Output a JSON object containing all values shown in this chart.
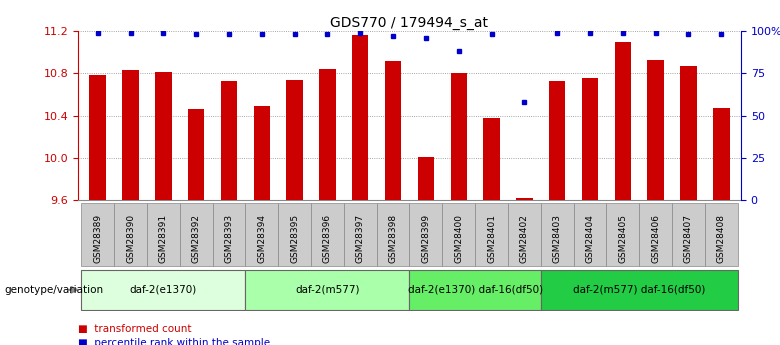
{
  "title": "GDS770 / 179494_s_at",
  "samples": [
    "GSM28389",
    "GSM28390",
    "GSM28391",
    "GSM28392",
    "GSM28393",
    "GSM28394",
    "GSM28395",
    "GSM28396",
    "GSM28397",
    "GSM28398",
    "GSM28399",
    "GSM28400",
    "GSM28401",
    "GSM28402",
    "GSM28403",
    "GSM28404",
    "GSM28405",
    "GSM28406",
    "GSM28407",
    "GSM28408"
  ],
  "bar_values": [
    10.78,
    10.83,
    10.81,
    10.46,
    10.73,
    10.49,
    10.74,
    10.84,
    11.16,
    10.92,
    10.01,
    10.8,
    10.38,
    9.62,
    10.73,
    10.76,
    11.1,
    10.93,
    10.87,
    10.47
  ],
  "percentile_values": [
    99,
    99,
    99,
    98,
    98,
    98,
    98,
    98,
    99,
    97,
    96,
    88,
    98,
    58,
    99,
    99,
    99,
    99,
    98,
    98
  ],
  "ymin": 9.6,
  "ymax": 11.2,
  "yticks_left": [
    9.6,
    10.0,
    10.4,
    10.8,
    11.2
  ],
  "yticks_right": [
    0,
    25,
    50,
    75,
    100
  ],
  "ytick_right_labels": [
    "0",
    "25",
    "50",
    "75",
    "100%"
  ],
  "bar_color": "#cc0000",
  "dot_color": "#0000cc",
  "left_tick_color": "#cc0000",
  "right_tick_color": "#0000cc",
  "groups": [
    {
      "label": "daf-2(e1370)",
      "start": 0,
      "end": 4,
      "color": "#ddffdd"
    },
    {
      "label": "daf-2(m577)",
      "start": 5,
      "end": 9,
      "color": "#aaffaa"
    },
    {
      "label": "daf-2(e1370) daf-16(df50)",
      "start": 10,
      "end": 13,
      "color": "#66ee66"
    },
    {
      "label": "daf-2(m577) daf-16(df50)",
      "start": 14,
      "end": 19,
      "color": "#22cc44"
    }
  ],
  "genotype_label": "genotype/variation",
  "legend_items": [
    {
      "label": "transformed count",
      "color": "#cc0000"
    },
    {
      "label": "percentile rank within the sample",
      "color": "#0000cc"
    }
  ],
  "bg_color": "#ffffff",
  "grid_color": "#888888",
  "bar_width": 0.5,
  "sample_box_color": "#cccccc",
  "sample_box_edge": "#888888"
}
